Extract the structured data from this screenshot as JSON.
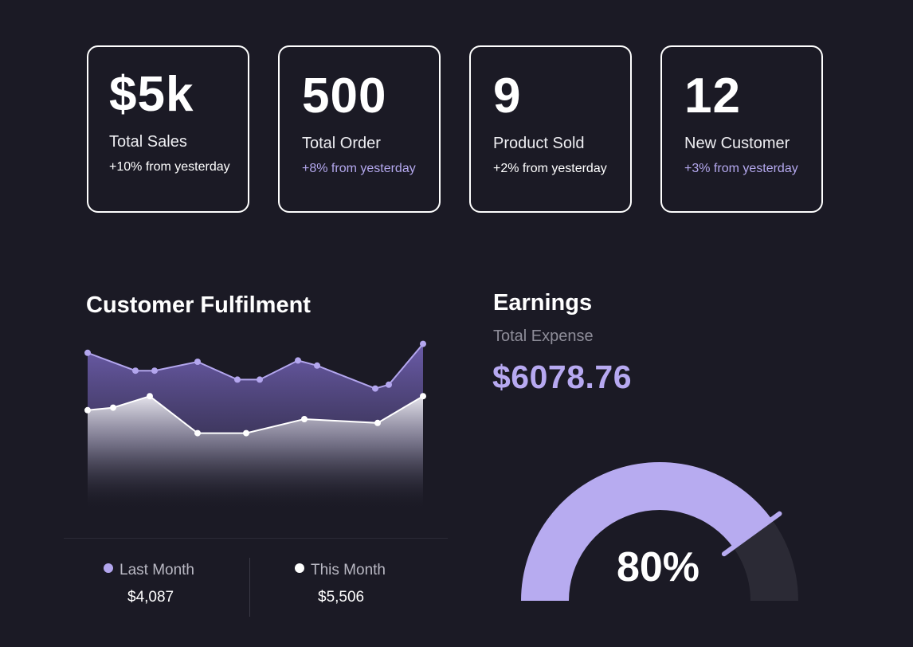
{
  "stats": [
    {
      "value": "$5k",
      "label": "Total Sales",
      "change": "+10% from yesterday",
      "accent": false
    },
    {
      "value": "500",
      "label": "Total Order",
      "change": "+8% from yesterday",
      "accent": true
    },
    {
      "value": "9",
      "label": "Product Sold",
      "change": "+2% from yesterday",
      "accent": false
    },
    {
      "value": "12",
      "label": "New Customer",
      "change": "+3% from yesterday",
      "accent": true
    }
  ],
  "fulfilment": {
    "title": "Customer Fulfilment",
    "legend": [
      {
        "name": "Last Month",
        "value": "$4,087",
        "color": "#b3a6ee"
      },
      {
        "name": "This Month",
        "value": "$5,506",
        "color": "#ffffff"
      }
    ]
  },
  "earnings": {
    "title": "Earnings",
    "subtitle": "Total Expense",
    "amount": "$6078.76",
    "percent_label": "80%",
    "percent": 80
  },
  "colors": {
    "background": "#1b1a25",
    "accent": "#b7a9f1",
    "gauge_track": "#2b2a35"
  },
  "chart_data": {
    "type": "area",
    "title": "Customer Fulfilment",
    "x": [
      1,
      2,
      3,
      4,
      5,
      6,
      7,
      8,
      9,
      10,
      11,
      12,
      13
    ],
    "ylim": [
      0,
      100
    ],
    "series": [
      {
        "name": "Last Month",
        "color": "#b3a6ee",
        "points": [
          [
            1,
            92
          ],
          [
            2,
            78
          ],
          [
            3,
            78
          ],
          [
            4,
            85
          ],
          [
            5,
            71
          ],
          [
            6,
            71
          ],
          [
            7,
            86
          ],
          [
            8,
            82
          ],
          [
            9,
            64
          ],
          [
            10,
            67
          ],
          [
            11,
            99
          ]
        ]
      },
      {
        "name": "This Month",
        "color": "#ffffff",
        "points": [
          [
            1,
            47
          ],
          [
            2,
            49
          ],
          [
            3,
            58
          ],
          [
            4,
            29
          ],
          [
            5,
            29
          ],
          [
            6,
            40
          ],
          [
            7,
            37
          ],
          [
            8,
            58
          ]
        ]
      }
    ]
  }
}
